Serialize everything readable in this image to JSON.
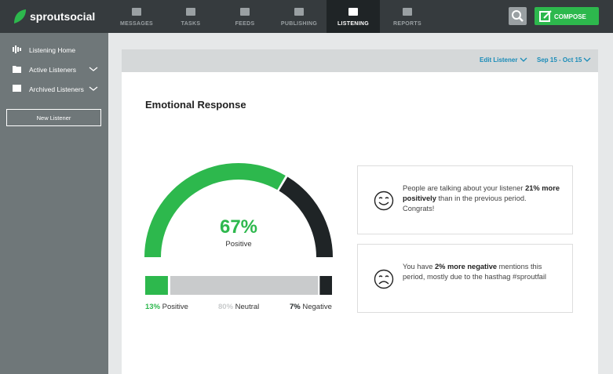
{
  "brand": "sproutsocial",
  "nav": [
    "MESSAGES",
    "TASKS",
    "FEEDS",
    "PUBLISHING",
    "LISTENING",
    "REPORTS"
  ],
  "active_nav": 4,
  "compose": "COMPOSE",
  "sidebar": {
    "items": [
      "Listening Home",
      "Active Listeners",
      "Archived Listeners"
    ],
    "button": "New Listener"
  },
  "toolbar": {
    "edit": "Edit Listener",
    "range": "Sep 15 - Oct 15"
  },
  "panel": {
    "title": "Emotional Response",
    "gauge": {
      "value": 67,
      "label": "67%",
      "caption": "Positive"
    },
    "breakdown": [
      {
        "value": 13,
        "label": "13%",
        "name": "Positive",
        "color": "#2db84d"
      },
      {
        "value": 80,
        "label": "80%",
        "name": "Neutral",
        "color": "#c9cbcc"
      },
      {
        "value": 7,
        "label": "7%",
        "name": "Negative",
        "color": "#1f2426"
      }
    ]
  },
  "insights": [
    {
      "parts": [
        {
          "text": "People are talking about your listener "
        },
        {
          "text": "21% more positively",
          "bold": true
        },
        {
          "text": " than in the previous period. Congrats!"
        }
      ]
    },
    {
      "parts": [
        {
          "text": "You have "
        },
        {
          "text": "2% more negative",
          "bold": true
        },
        {
          "text": " mentions this period, mostly due to the hasthag #sproutfail"
        }
      ]
    }
  ]
}
